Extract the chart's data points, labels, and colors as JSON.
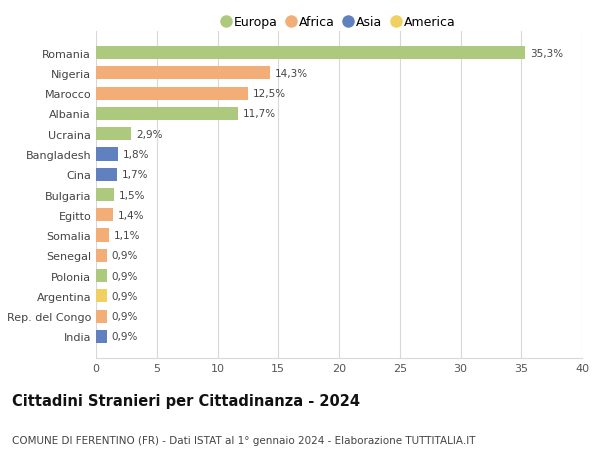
{
  "countries": [
    "Romania",
    "Nigeria",
    "Marocco",
    "Albania",
    "Ucraina",
    "Bangladesh",
    "Cina",
    "Bulgaria",
    "Egitto",
    "Somalia",
    "Senegal",
    "Polonia",
    "Argentina",
    "Rep. del Congo",
    "India"
  ],
  "values": [
    35.3,
    14.3,
    12.5,
    11.7,
    2.9,
    1.8,
    1.7,
    1.5,
    1.4,
    1.1,
    0.9,
    0.9,
    0.9,
    0.9,
    0.9
  ],
  "labels": [
    "35,3%",
    "14,3%",
    "12,5%",
    "11,7%",
    "2,9%",
    "1,8%",
    "1,7%",
    "1,5%",
    "1,4%",
    "1,1%",
    "0,9%",
    "0,9%",
    "0,9%",
    "0,9%",
    "0,9%"
  ],
  "continents": [
    "Europa",
    "Africa",
    "Africa",
    "Europa",
    "Europa",
    "Asia",
    "Asia",
    "Europa",
    "Africa",
    "Africa",
    "Africa",
    "Europa",
    "America",
    "Africa",
    "Asia"
  ],
  "continent_colors": {
    "Europa": "#adc97e",
    "Africa": "#f2ae76",
    "Asia": "#6080c0",
    "America": "#f0d060"
  },
  "legend_order": [
    "Europa",
    "Africa",
    "Asia",
    "America"
  ],
  "xlim": [
    0,
    40
  ],
  "xticks": [
    0,
    5,
    10,
    15,
    20,
    25,
    30,
    35,
    40
  ],
  "title": "Cittadini Stranieri per Cittadinanza - 2024",
  "subtitle": "COMUNE DI FERENTINO (FR) - Dati ISTAT al 1° gennaio 2024 - Elaborazione TUTTITALIA.IT",
  "title_fontsize": 10.5,
  "subtitle_fontsize": 7.5,
  "background_color": "#ffffff",
  "grid_color": "#d8d8d8",
  "bar_height": 0.65
}
